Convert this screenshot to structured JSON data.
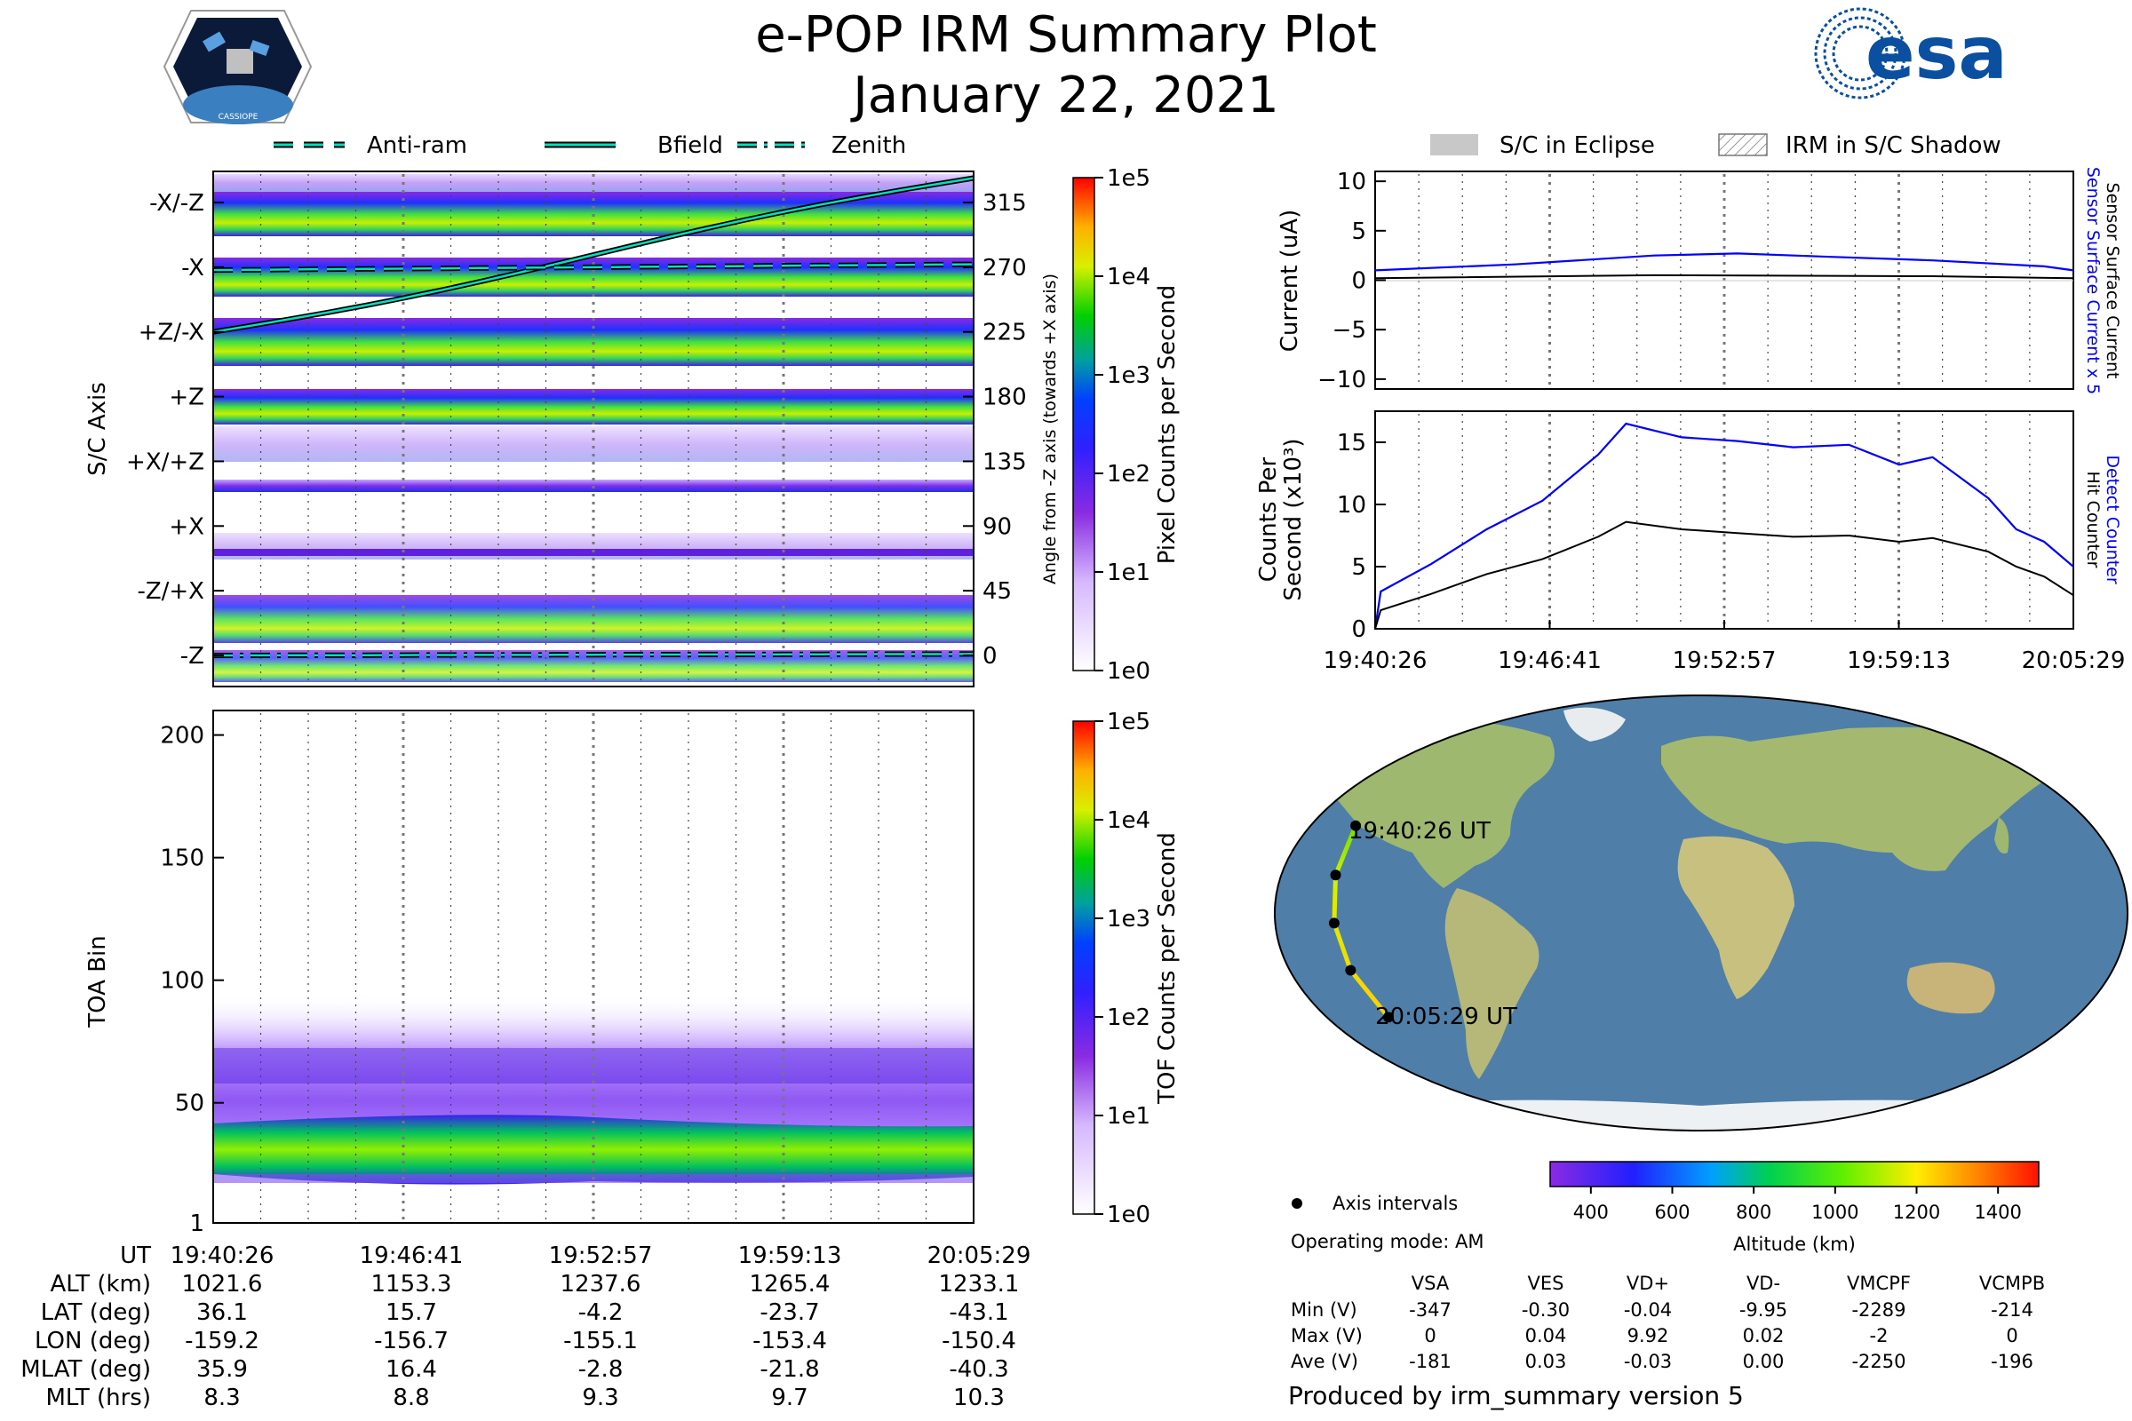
{
  "header": {
    "title": "e-POP IRM Summary Plot",
    "date": "January 22, 2021",
    "mission_logo_text": "CASSIOPE",
    "agency_logo_text": "esa"
  },
  "legend_top": {
    "items": [
      {
        "label": "Anti-ram",
        "style": "dashed"
      },
      {
        "label": "Bfield",
        "style": "solid"
      },
      {
        "label": "Zenith",
        "style": "dashdot"
      }
    ],
    "eclipse": "S/C in Eclipse",
    "shadow": "IRM in S/C Shadow"
  },
  "colors": {
    "guide_line": "#00e0c0",
    "sensor": "#0000ff",
    "counter_black": "#000000",
    "map_ocean": "#4f7fa8",
    "map_land": "#9fb870"
  },
  "chart_data": [
    {
      "id": "sc_axis_panel",
      "type": "heatmap",
      "ylabel": "S/C Axis",
      "y_categories": [
        "-Z",
        "-Z/+X",
        "+X",
        "+X/+Z",
        "+Z",
        "+Z/-X",
        "-X",
        "-X/-Z"
      ],
      "y2label": "Angle from -Z axis (towards +X axis)",
      "y2_ticks": [
        0,
        45,
        90,
        135,
        180,
        225,
        270,
        315
      ],
      "y2lim": [
        -10,
        340
      ],
      "colorbar_label": "Pixel Counts per Second",
      "colorbar_ticks": [
        "1e0",
        "1e1",
        "1e2",
        "1e3",
        "1e4",
        "1e5"
      ],
      "series": [
        {
          "name": "Bfield",
          "x_min": [
            0,
            25.05
          ],
          "values": [
            225,
            332
          ]
        },
        {
          "name": "Anti-ram",
          "x_min": [
            0,
            25.05
          ],
          "values": [
            268,
            272
          ]
        },
        {
          "name": "Zenith",
          "x_min": [
            0,
            25.05
          ],
          "values": [
            0,
            1
          ]
        }
      ]
    },
    {
      "id": "toa_panel",
      "type": "heatmap",
      "ylabel": "TOA Bin",
      "yticks": [
        1,
        50,
        100,
        150,
        200
      ],
      "ylim": [
        1,
        210
      ],
      "colorbar_label": "TOF Counts per Second",
      "colorbar_ticks": [
        "1e0",
        "1e1",
        "1e2",
        "1e3",
        "1e4",
        "1e5"
      ]
    },
    {
      "id": "current_panel",
      "type": "line",
      "ylabel": "Current (uA)",
      "yticks": [
        10,
        5,
        0,
        -5,
        -10
      ],
      "ylim": [
        -11,
        11
      ],
      "right_labels": [
        "Sensor Surface Current x 5",
        "Sensor Surface Current"
      ],
      "series": [
        {
          "name": "Sensor Surface Current x 5",
          "x_min": [
            0,
            5,
            10,
            13,
            16,
            20,
            24,
            25.05
          ],
          "values": [
            1.0,
            1.6,
            2.5,
            2.7,
            2.4,
            2.0,
            1.4,
            1.0
          ]
        },
        {
          "name": "Sensor Surface Current",
          "x_min": [
            0,
            10,
            20,
            25.05
          ],
          "values": [
            0.2,
            0.5,
            0.4,
            0.2
          ]
        }
      ]
    },
    {
      "id": "counter_panel",
      "type": "line",
      "ylabel": "Counts Per Second (x10³)",
      "yticks": [
        0,
        5,
        10,
        15
      ],
      "ylim": [
        0,
        17.5
      ],
      "right_labels": [
        "Detect Counter",
        "Hit Counter"
      ],
      "xticks": [
        "19:40:26",
        "19:46:41",
        "19:52:57",
        "19:59:13",
        "20:05:29"
      ],
      "series": [
        {
          "name": "Detect Counter",
          "x_min": [
            0,
            0.2,
            2,
            4,
            6,
            8,
            9,
            11,
            13,
            15,
            17,
            18.8,
            20,
            22,
            23,
            24,
            25.05
          ],
          "values": [
            0,
            3.0,
            5.2,
            8.0,
            10.3,
            14.0,
            16.5,
            15.4,
            15.1,
            14.6,
            14.8,
            13.2,
            13.8,
            10.5,
            8.0,
            7.0,
            5.0
          ]
        },
        {
          "name": "Hit Counter",
          "x_min": [
            0,
            0.2,
            2,
            4,
            6,
            8,
            9,
            11,
            13,
            15,
            17,
            18.8,
            20,
            22,
            23,
            24,
            25.05
          ],
          "values": [
            0,
            1.5,
            2.8,
            4.4,
            5.6,
            7.4,
            8.6,
            8.0,
            7.7,
            7.4,
            7.5,
            7.0,
            7.3,
            6.2,
            5.0,
            4.2,
            2.7
          ]
        }
      ]
    },
    {
      "id": "orbit_map",
      "type": "scatter",
      "start_label": "19:40:26 UT",
      "end_label": "20:05:29 UT",
      "track": [
        {
          "lon": -159.2,
          "lat": 36.1
        },
        {
          "lon": -156.7,
          "lat": 15.7
        },
        {
          "lon": -155.1,
          "lat": -4.2
        },
        {
          "lon": -153.4,
          "lat": -23.7
        },
        {
          "lon": -150.4,
          "lat": -43.1
        }
      ],
      "altitude_colorbar_label": "Altitude (km)",
      "altitude_ticks": [
        400,
        600,
        800,
        1000,
        1200,
        1400
      ],
      "legend": "Axis intervals"
    }
  ],
  "ephemeris": {
    "labels": [
      "UT",
      "ALT (km)",
      "LAT (deg)",
      "LON (deg)",
      "MLAT (deg)",
      "MLT (hrs)"
    ],
    "columns": [
      [
        "19:40:26",
        "1021.6",
        "36.1",
        "-159.2",
        "35.9",
        "8.3"
      ],
      [
        "19:46:41",
        "1153.3",
        "15.7",
        "-156.7",
        "16.4",
        "8.8"
      ],
      [
        "19:52:57",
        "1237.6",
        "-4.2",
        "-155.1",
        "-2.8",
        "9.3"
      ],
      [
        "19:59:13",
        "1265.4",
        "-23.7",
        "-153.4",
        "-21.8",
        "9.7"
      ],
      [
        "20:05:29",
        "1233.1",
        "-43.1",
        "-150.4",
        "-40.3",
        "10.3"
      ]
    ]
  },
  "status": {
    "operating_mode": "Operating mode: AM",
    "voltage_headers": [
      "VSA",
      "VES",
      "VD+",
      "VD-",
      "VMCPF",
      "VCMPB"
    ],
    "voltage_rows": [
      {
        "label": "Min (V)",
        "values": [
          "-347",
          "-0.30",
          "-0.04",
          "-9.95",
          "-2289",
          "-214"
        ]
      },
      {
        "label": "Max (V)",
        "values": [
          "0",
          "0.04",
          "9.92",
          "0.02",
          "-2",
          "0"
        ]
      },
      {
        "label": "Ave (V)",
        "values": [
          "-181",
          "0.03",
          "-0.03",
          "0.00",
          "-2250",
          "-196"
        ]
      }
    ],
    "produced_by": "Produced by irm_summary version 5"
  }
}
